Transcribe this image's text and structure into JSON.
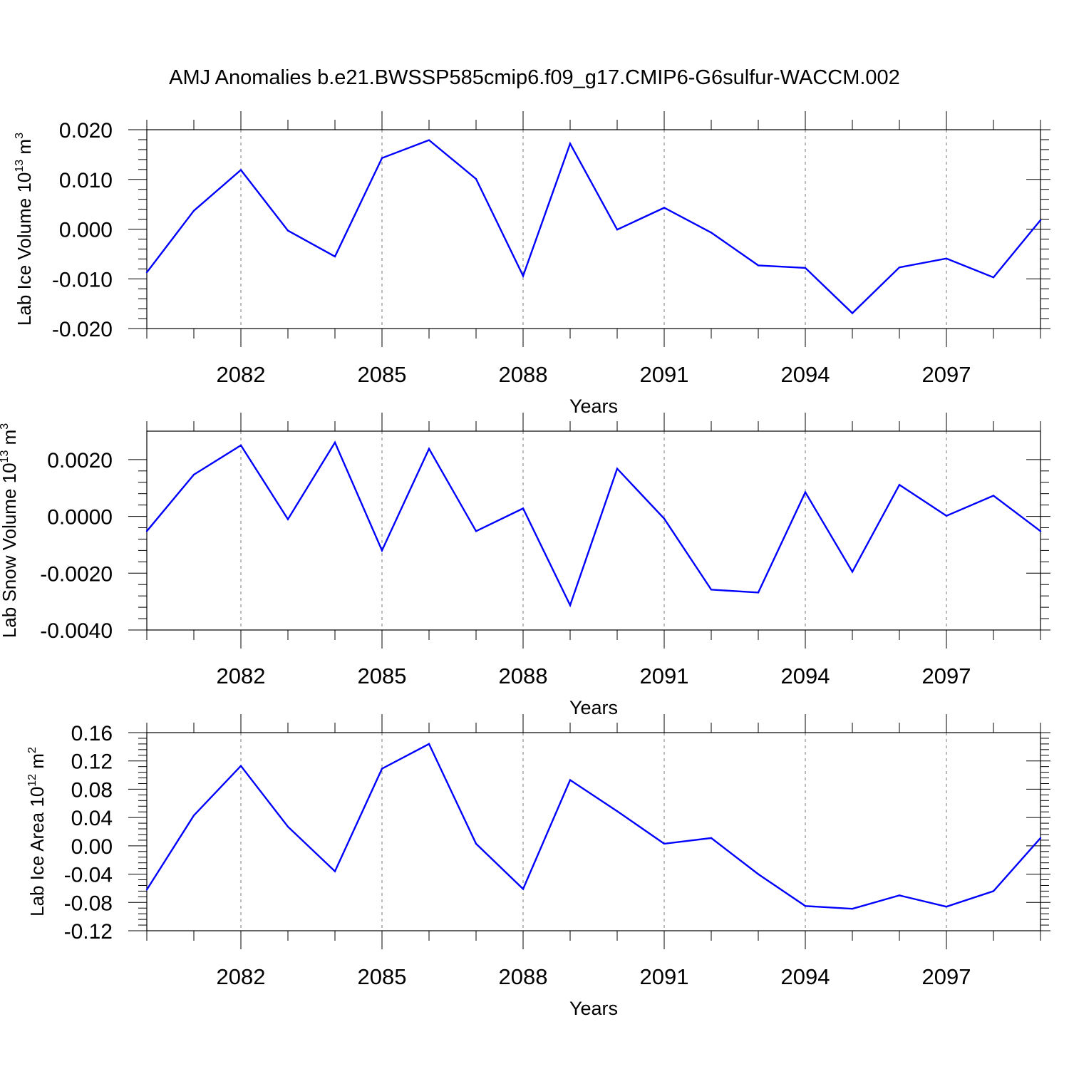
{
  "title": "AMJ Anomalies b.e21.BWSSP585cmip6.f09_g17.CMIP6-G6sulfur-WACCM.002",
  "chart_data": [
    {
      "type": "line",
      "xlabel": "Years",
      "ylabel": "Lab Ice Volume 10",
      "ylabel_exp": "13",
      "ylabel_unit": "m",
      "ylabel_unit_exp": "3",
      "xlim": [
        2080,
        2099
      ],
      "ylim": [
        -0.02,
        0.02
      ],
      "xticks": [
        "2082",
        "2085",
        "2088",
        "2091",
        "2094",
        "2097"
      ],
      "xtick_values": [
        2082,
        2085,
        2088,
        2091,
        2094,
        2097
      ],
      "yticks": [
        "0.020",
        "0.010",
        "0.000",
        "-0.010",
        "-0.020"
      ],
      "ytick_values": [
        0.02,
        0.01,
        0.0,
        -0.01,
        -0.02
      ],
      "line_color": "#0000ff",
      "x": [
        2080,
        2081,
        2082,
        2083,
        2084,
        2085,
        2086,
        2087,
        2088,
        2089,
        2090,
        2091,
        2092,
        2093,
        2094,
        2095,
        2096,
        2097,
        2098,
        2099
      ],
      "values": [
        -0.0087,
        0.0037,
        0.0119,
        -0.0003,
        -0.0055,
        0.0143,
        0.0179,
        0.0101,
        -0.0094,
        0.0172,
        -0.0001,
        0.0043,
        -0.0007,
        -0.0073,
        -0.0078,
        -0.0169,
        -0.0077,
        -0.0059,
        -0.0097,
        0.0018
      ]
    },
    {
      "type": "line",
      "xlabel": "Years",
      "ylabel": "Lab Snow Volume 10",
      "ylabel_exp": "13",
      "ylabel_unit": "m",
      "ylabel_unit_exp": "3",
      "xlim": [
        2080,
        2099
      ],
      "ylim": [
        -0.004,
        0.003
      ],
      "xticks": [
        "2082",
        "2085",
        "2088",
        "2091",
        "2094",
        "2097"
      ],
      "xtick_values": [
        2082,
        2085,
        2088,
        2091,
        2094,
        2097
      ],
      "yticks": [
        "0.0020",
        "0.0000",
        "-0.0020",
        "-0.0040"
      ],
      "ytick_values": [
        0.002,
        0.0,
        -0.002,
        -0.004
      ],
      "line_color": "#0000ff",
      "x": [
        2080,
        2081,
        2082,
        2083,
        2084,
        2085,
        2086,
        2087,
        2088,
        2089,
        2090,
        2091,
        2092,
        2093,
        2094,
        2095,
        2096,
        2097,
        2098,
        2099
      ],
      "values": [
        -0.00052,
        0.00147,
        0.0025,
        -0.0001,
        0.0026,
        -0.0012,
        0.00238,
        -0.00052,
        0.00028,
        -0.00313,
        0.00168,
        -8e-05,
        -0.00258,
        -0.00268,
        0.00085,
        -0.00195,
        0.00111,
        2e-05,
        0.00073,
        -0.00052
      ]
    },
    {
      "type": "line",
      "xlabel": "Years",
      "ylabel": "Lab Ice Area 10",
      "ylabel_exp": "12",
      "ylabel_unit": "m",
      "ylabel_unit_exp": "2",
      "xlim": [
        2080,
        2099
      ],
      "ylim": [
        -0.12,
        0.16
      ],
      "xticks": [
        "2082",
        "2085",
        "2088",
        "2091",
        "2094",
        "2097"
      ],
      "xtick_values": [
        2082,
        2085,
        2088,
        2091,
        2094,
        2097
      ],
      "yticks": [
        "0.16",
        "0.12",
        "0.08",
        "0.04",
        "0.00",
        "-0.04",
        "-0.08",
        "-0.12"
      ],
      "ytick_values": [
        0.16,
        0.12,
        0.08,
        0.04,
        0.0,
        -0.04,
        -0.08,
        -0.12
      ],
      "line_color": "#0000ff",
      "x": [
        2080,
        2081,
        2082,
        2083,
        2084,
        2085,
        2086,
        2087,
        2088,
        2089,
        2090,
        2091,
        2092,
        2093,
        2094,
        2095,
        2096,
        2097,
        2098,
        2099
      ],
      "values": [
        -0.062,
        0.043,
        0.113,
        0.027,
        -0.036,
        0.109,
        0.144,
        0.003,
        -0.061,
        0.093,
        0.049,
        0.003,
        0.011,
        -0.04,
        -0.085,
        -0.089,
        -0.07,
        -0.086,
        -0.064,
        0.011
      ]
    }
  ]
}
